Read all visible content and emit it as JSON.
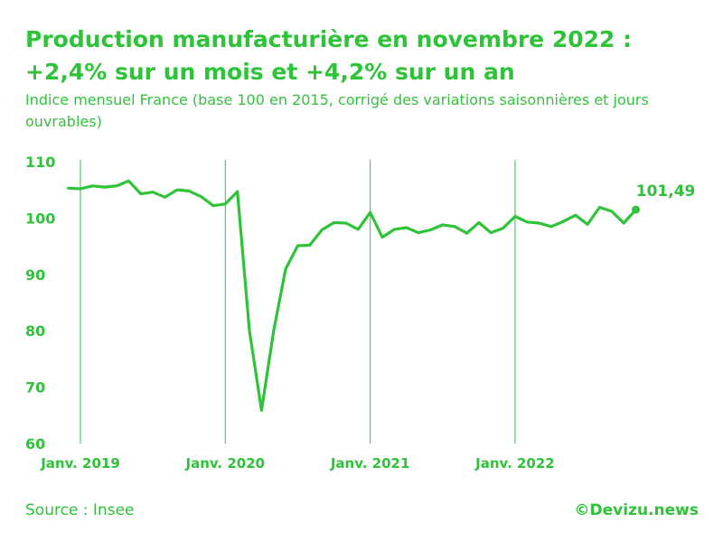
{
  "title": "Production manufacturière en novembre 2022 : +2,4% sur un mois et +4,2% sur un an",
  "subtitle": "Indice mensuel France (base 100 en 2015, corrigé des variations saisonnières et jours ouvrables)",
  "source": "Source : Insee",
  "brand": "©Devizu.news",
  "colors": {
    "accent": "#2ec339",
    "line": "#2ec339",
    "gridline": "#2ec339"
  },
  "chart_data": {
    "type": "line",
    "title": "Production manufacturière en novembre 2022 : +2,4% sur un mois et +4,2% sur un an",
    "xlabel": "",
    "ylabel": "",
    "ylim": [
      60,
      110
    ],
    "yticks": [
      60,
      70,
      80,
      90,
      100,
      110
    ],
    "xtick_labels": [
      "Janv. 2019",
      "Janv. 2020",
      "Janv. 2021",
      "Janv. 2022"
    ],
    "xtick_dates": [
      "2019-01",
      "2020-01",
      "2021-01",
      "2022-01"
    ],
    "grid": "vertical lines at each January",
    "legend": "none",
    "annotation": {
      "text": "101,49",
      "x": "2022-11"
    },
    "series": [
      {
        "x": [
          "2018-12",
          "2019-01",
          "2019-02",
          "2019-03",
          "2019-04",
          "2019-05",
          "2019-06",
          "2019-07",
          "2019-08",
          "2019-09",
          "2019-10",
          "2019-11",
          "2019-12",
          "2020-01",
          "2020-02",
          "2020-03",
          "2020-04",
          "2020-05",
          "2020-06",
          "2020-07",
          "2020-08",
          "2020-09",
          "2020-10",
          "2020-11",
          "2020-12",
          "2021-01",
          "2021-02",
          "2021-03",
          "2021-04",
          "2021-05",
          "2021-06",
          "2021-07",
          "2021-08",
          "2021-09",
          "2021-10",
          "2021-11",
          "2021-12",
          "2022-01",
          "2022-02",
          "2022-03",
          "2022-04",
          "2022-05",
          "2022-06",
          "2022-07",
          "2022-08",
          "2022-09",
          "2022-10",
          "2022-11"
        ],
        "values": [
          105.3,
          105.2,
          105.7,
          105.5,
          105.7,
          106.6,
          104.3,
          104.6,
          103.7,
          105.0,
          104.8,
          103.8,
          102.2,
          102.5,
          104.7,
          80.0,
          65.9,
          80.0,
          91.0,
          95.1,
          95.2,
          97.9,
          99.2,
          99.1,
          98.0,
          101.0,
          96.6,
          98.0,
          98.3,
          97.4,
          97.9,
          98.8,
          98.5,
          97.3,
          99.2,
          97.4,
          98.2,
          100.3,
          99.3,
          99.1,
          98.5,
          99.4,
          100.5,
          98.9,
          101.9,
          101.2,
          99.1,
          101.49
        ]
      }
    ]
  }
}
